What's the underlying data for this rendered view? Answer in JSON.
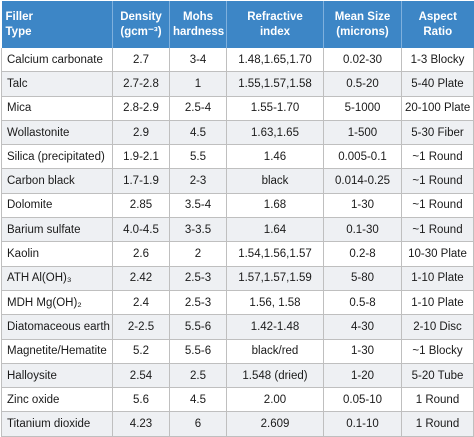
{
  "header": {
    "filler_type": [
      "Filler",
      "Type"
    ],
    "density": [
      "Density",
      "(gcm⁻³)"
    ],
    "mohs": [
      "Mohs",
      "hardness"
    ],
    "refractive": [
      "Refractive",
      "index"
    ],
    "mean_size": [
      "Mean Size",
      "(microns)"
    ],
    "aspect": [
      "Aspect",
      "Ratio"
    ]
  },
  "rows": [
    [
      "Calcium carbonate",
      "2.7",
      "3-4",
      "1.48,1.65,1.70",
      "0.02-30",
      "1-3 Blocky"
    ],
    [
      "Talc",
      "2.7-2.8",
      "1",
      "1.55,1.57,1.58",
      "0.5-20",
      "5-40 Plate"
    ],
    [
      "Mica",
      "2.8-2.9",
      "2.5-4",
      "1.55-1.70",
      "5-1000",
      "20-100 Plate"
    ],
    [
      "Wollastonite",
      "2.9",
      "4.5",
      "1.63,1.65",
      "1-500",
      "5-30 Fiber"
    ],
    [
      "Silica (precipitated)",
      "1.9-2.1",
      "5.5",
      "1.46",
      "0.005-0.1",
      "~1 Round"
    ],
    [
      "Carbon black",
      "1.7-1.9",
      "2-3",
      "black",
      "0.014-0.25",
      "~1 Round"
    ],
    [
      "Dolomite",
      "2.85",
      "3.5-4",
      "1.68",
      "1-30",
      "~1 Round"
    ],
    [
      "Barium sulfate",
      "4.0-4.5",
      "3-3.5",
      "1.64",
      "0.1-30",
      "~1 Round"
    ],
    [
      "Kaolin",
      "2.6",
      "2",
      "1.54,1.56,1.57",
      "0.2-8",
      "10-30 Plate"
    ],
    [
      "ATH Al(OH)₃",
      "2.42",
      "2.5-3",
      "1.57,1.57,1.59",
      "5-80",
      "1-10 Plate"
    ],
    [
      "MDH Mg(OH)₂",
      "2.4",
      "2.5-3",
      "1.56, 1.58",
      "0.5-8",
      "1-10 Plate"
    ],
    [
      "Diatomaceous earth",
      "2-2.5",
      "5.5-6",
      "1.42-1.48",
      "4-30",
      "2-10 Disc"
    ],
    [
      "Magnetite/Hematite",
      "5.2",
      "5.5-6",
      "black/red",
      "1-30",
      "~1 Blocky"
    ],
    [
      "Halloysite",
      "2.54",
      "2.5",
      "1.548 (dried)",
      "1-20",
      "5-20 Tube"
    ],
    [
      "Zinc oxide",
      "5.6",
      "4.5",
      "2.00",
      "0.05-10",
      "1 Round"
    ],
    [
      "Titanium dioxide",
      "4.23",
      "6",
      "2.609",
      "0.1-10",
      "1 Round"
    ]
  ]
}
